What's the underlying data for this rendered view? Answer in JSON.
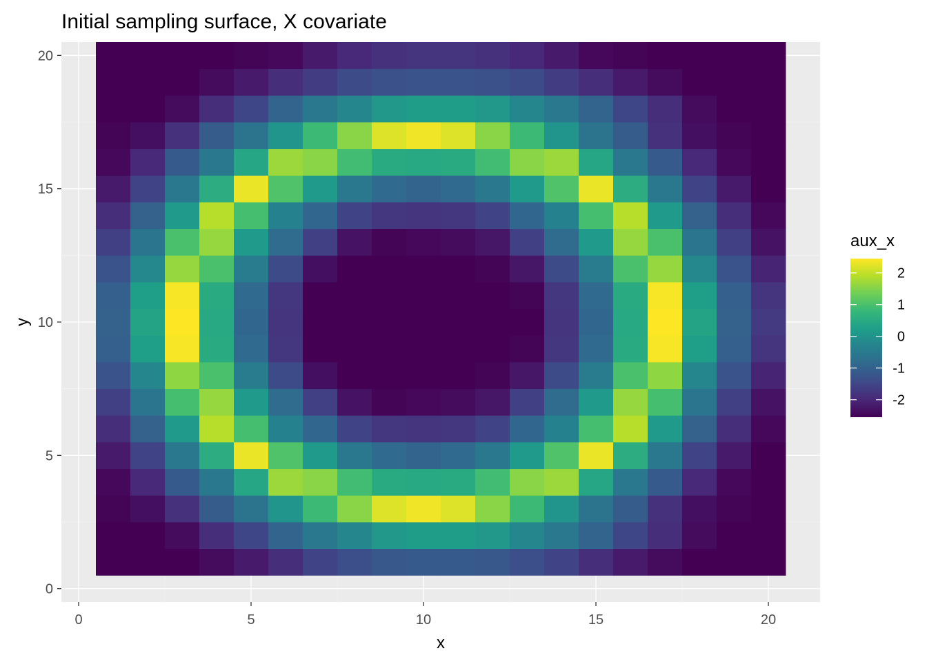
{
  "chart_data": {
    "type": "heatmap",
    "title": "Initial sampling surface, X covariate",
    "xlabel": "x",
    "ylabel": "y",
    "xlim": [
      -0.5,
      21.5
    ],
    "ylim": [
      -0.5,
      20.5
    ],
    "x_ticks": [
      0,
      5,
      10,
      15,
      20
    ],
    "y_ticks": [
      0,
      5,
      10,
      15,
      20
    ],
    "x_values": [
      1,
      2,
      3,
      4,
      5,
      6,
      7,
      8,
      9,
      10,
      11,
      12,
      13,
      14,
      15,
      16,
      17,
      18,
      19,
      20
    ],
    "y_values": [
      1,
      2,
      3,
      4,
      5,
      6,
      7,
      8,
      9,
      10,
      11,
      12,
      13,
      14,
      15,
      16,
      17,
      18,
      19,
      20
    ],
    "z_rows_description": "z[row][col], row index 0 = y=1 (bottom), col index 0 = x=1",
    "z": [
      [
        -2.55,
        -2.55,
        -2.55,
        -2.4,
        -2.2,
        -1.9,
        -1.55,
        -1.35,
        -1.2,
        -1.15,
        -1.15,
        -1.2,
        -1.35,
        -1.55,
        -1.9,
        -2.2,
        -2.4,
        -2.55,
        -2.55,
        -2.55
      ],
      [
        -2.55,
        -2.55,
        -2.4,
        -1.9,
        -1.5,
        -0.95,
        -0.55,
        -0.25,
        0.1,
        0.2,
        0.2,
        0.1,
        -0.25,
        -0.55,
        -0.95,
        -1.5,
        -1.9,
        -2.4,
        -2.55,
        -2.55
      ],
      [
        -2.5,
        -2.35,
        -1.85,
        -1.1,
        -0.65,
        0.05,
        0.85,
        1.55,
        2.2,
        2.35,
        2.2,
        1.55,
        0.85,
        0.05,
        -0.65,
        -1.1,
        -1.85,
        -2.35,
        -2.5,
        -2.55
      ],
      [
        -2.45,
        -2.0,
        -1.15,
        -0.55,
        0.4,
        1.7,
        1.55,
        0.9,
        0.5,
        0.45,
        0.5,
        0.9,
        1.55,
        1.7,
        0.4,
        -0.55,
        -1.15,
        -2.0,
        -2.45,
        -2.55
      ],
      [
        -2.2,
        -1.55,
        -0.55,
        0.55,
        2.3,
        1.05,
        0.15,
        -0.55,
        -0.85,
        -0.95,
        -0.85,
        -0.55,
        0.15,
        1.05,
        2.3,
        0.55,
        -0.55,
        -1.55,
        -2.2,
        -2.55
      ],
      [
        -1.9,
        -1.0,
        0.15,
        1.9,
        0.95,
        -0.35,
        -0.9,
        -1.55,
        -1.75,
        -1.8,
        -1.75,
        -1.55,
        -0.9,
        -0.35,
        0.95,
        1.9,
        0.15,
        -1.0,
        -1.9,
        -2.45
      ],
      [
        -1.6,
        -0.6,
        0.95,
        1.65,
        0.15,
        -0.8,
        -1.6,
        -2.3,
        -2.5,
        -2.45,
        -2.4,
        -2.25,
        -1.6,
        -0.8,
        0.15,
        1.65,
        0.95,
        -0.6,
        -1.6,
        -2.3
      ],
      [
        -1.25,
        -0.25,
        1.6,
        1.0,
        -0.45,
        -1.4,
        -2.35,
        -2.55,
        -2.55,
        -2.55,
        -2.55,
        -2.5,
        -2.25,
        -1.4,
        -0.45,
        1.0,
        1.6,
        -0.25,
        -1.25,
        -2.05
      ],
      [
        -1.05,
        0.25,
        2.4,
        0.5,
        -0.85,
        -1.75,
        -2.55,
        -2.55,
        -2.55,
        -2.55,
        -2.55,
        -2.55,
        -2.5,
        -1.75,
        -0.85,
        0.5,
        2.4,
        0.25,
        -1.05,
        -1.8
      ],
      [
        -1.0,
        0.35,
        2.45,
        0.45,
        -0.9,
        -1.8,
        -2.55,
        -2.55,
        -2.55,
        -2.55,
        -2.55,
        -2.55,
        -2.55,
        -1.8,
        -0.9,
        0.45,
        2.45,
        0.35,
        -1.0,
        -1.7
      ],
      [
        -1.05,
        0.25,
        2.4,
        0.5,
        -0.85,
        -1.75,
        -2.55,
        -2.55,
        -2.55,
        -2.55,
        -2.55,
        -2.55,
        -2.5,
        -1.75,
        -0.85,
        0.5,
        2.4,
        0.25,
        -1.05,
        -1.8
      ],
      [
        -1.25,
        -0.2,
        1.65,
        1.0,
        -0.45,
        -1.4,
        -2.35,
        -2.55,
        -2.55,
        -2.55,
        -2.55,
        -2.5,
        -2.25,
        -1.4,
        -0.45,
        1.0,
        1.65,
        -0.2,
        -1.25,
        -2.05
      ],
      [
        -1.6,
        -0.6,
        1.0,
        1.65,
        0.15,
        -0.8,
        -1.6,
        -2.3,
        -2.5,
        -2.45,
        -2.4,
        -2.25,
        -1.6,
        -0.8,
        0.15,
        1.65,
        1.0,
        -0.6,
        -1.6,
        -2.3
      ],
      [
        -1.9,
        -1.0,
        0.15,
        1.9,
        0.95,
        -0.35,
        -0.9,
        -1.55,
        -1.75,
        -1.8,
        -1.75,
        -1.55,
        -0.9,
        -0.35,
        0.95,
        1.9,
        0.15,
        -1.0,
        -1.9,
        -2.45
      ],
      [
        -2.2,
        -1.55,
        -0.55,
        0.55,
        2.3,
        1.05,
        0.15,
        -0.55,
        -0.85,
        -0.95,
        -0.85,
        -0.55,
        0.15,
        1.05,
        2.3,
        0.55,
        -0.55,
        -1.55,
        -2.2,
        -2.55
      ],
      [
        -2.45,
        -2.0,
        -1.15,
        -0.55,
        0.4,
        1.7,
        1.55,
        0.9,
        0.5,
        0.45,
        0.5,
        0.9,
        1.55,
        1.7,
        0.4,
        -0.55,
        -1.15,
        -2.0,
        -2.45,
        -2.55
      ],
      [
        -2.5,
        -2.35,
        -1.85,
        -1.1,
        -0.65,
        0.05,
        0.85,
        1.55,
        2.2,
        2.35,
        2.2,
        1.55,
        0.85,
        0.05,
        -0.65,
        -1.1,
        -1.85,
        -2.35,
        -2.5,
        -2.55
      ],
      [
        -2.55,
        -2.55,
        -2.4,
        -1.9,
        -1.5,
        -0.95,
        -0.55,
        -0.25,
        0.1,
        0.2,
        0.2,
        0.1,
        -0.25,
        -0.55,
        -0.95,
        -1.5,
        -1.9,
        -2.4,
        -2.55,
        -2.55
      ],
      [
        -2.55,
        -2.55,
        -2.55,
        -2.4,
        -2.2,
        -1.9,
        -1.65,
        -1.4,
        -1.3,
        -1.25,
        -1.25,
        -1.3,
        -1.4,
        -1.65,
        -1.9,
        -2.2,
        -2.4,
        -2.55,
        -2.55,
        -2.55
      ],
      [
        -2.55,
        -2.55,
        -2.55,
        -2.55,
        -2.5,
        -2.45,
        -2.2,
        -2.0,
        -1.85,
        -1.8,
        -1.8,
        -1.85,
        -2.0,
        -2.2,
        -2.45,
        -2.5,
        -2.55,
        -2.55,
        -2.55,
        -2.55
      ]
    ],
    "legend": {
      "title": "aux_x",
      "position": "right",
      "breaks": [
        2,
        1,
        0,
        -1,
        -2
      ],
      "range": [
        -2.55,
        2.45
      ],
      "palette": "viridis"
    },
    "grid": true,
    "colors": {
      "panel_background": "#ebebeb",
      "grid_major": "#ffffff",
      "grid_minor": "#f5f5f5",
      "tick_text": "#4d4d4d",
      "viridis_stops": [
        "#440154",
        "#482878",
        "#3e4a89",
        "#31688e",
        "#26828e",
        "#1f9e89",
        "#35b779",
        "#6ece58",
        "#b5de2b",
        "#fde725"
      ]
    }
  }
}
